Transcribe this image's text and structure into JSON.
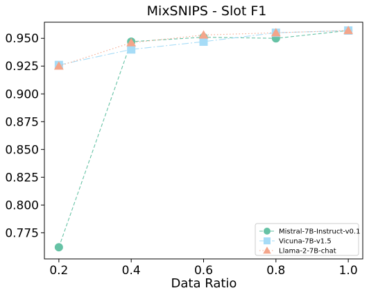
{
  "chart_data": {
    "type": "line",
    "title": "MixSNIPS - Slot F1",
    "xlabel": "Data Ratio",
    "ylabel": "",
    "x": [
      0.2,
      0.4,
      0.6,
      0.8,
      1.0
    ],
    "x_ticks": [
      "0.2",
      "0.4",
      "0.6",
      "0.8",
      "1.0"
    ],
    "y_ticks": [
      "0.775",
      "0.800",
      "0.825",
      "0.850",
      "0.875",
      "0.900",
      "0.925",
      "0.950"
    ],
    "xlim": [
      0.16,
      1.04
    ],
    "ylim": [
      0.7515,
      0.9645
    ],
    "grid": false,
    "legend_position": "lower-right",
    "series": [
      {
        "name": "Mistral-7B-Instruct-v0.1",
        "values": [
          0.762,
          0.947,
          0.951,
          0.95,
          0.957
        ],
        "color": "#66c2a5",
        "marker": "circle",
        "dash": "5,3"
      },
      {
        "name": "Vicuna-7B-v1.5",
        "values": [
          0.926,
          0.94,
          0.947,
          0.955,
          0.957
        ],
        "color": "#a6dcf7",
        "marker": "square",
        "dash": "10,3,2,3"
      },
      {
        "name": "Llama-2-7B-chat",
        "values": [
          0.925,
          0.946,
          0.953,
          0.955,
          0.957
        ],
        "color": "#f4a58a",
        "marker": "triangle",
        "dash": "1.5,3"
      }
    ]
  }
}
